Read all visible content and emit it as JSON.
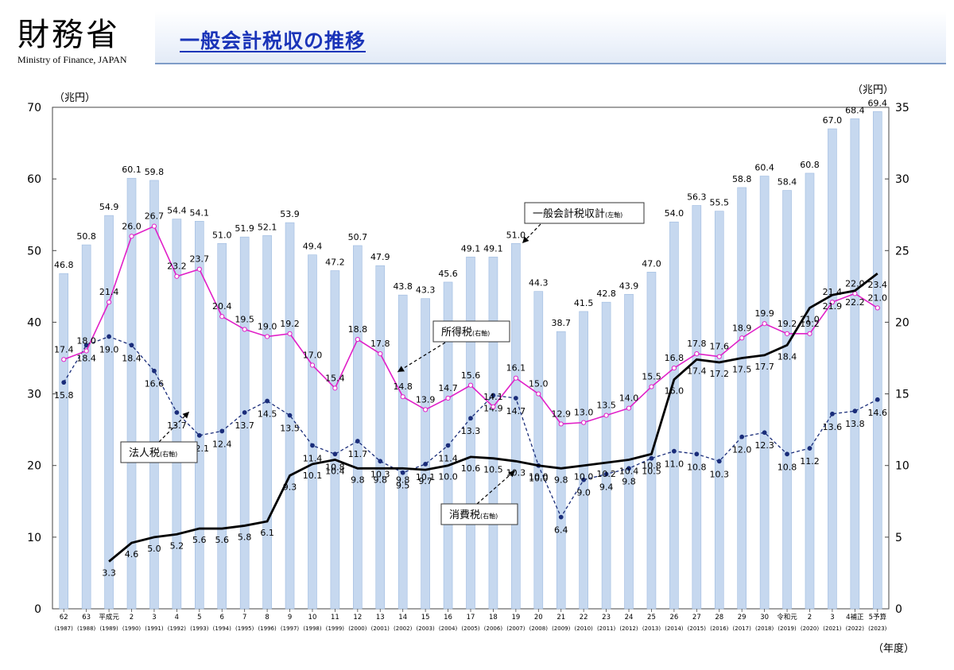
{
  "header": {
    "org_name": "財務省",
    "org_name_en": "Ministry of Finance, JAPAN",
    "title": "一般会計税収の推移"
  },
  "chart_data": {
    "type": "bar",
    "title": "",
    "y_left_unit": "（兆円）",
    "y_right_unit": "（兆円）",
    "x_unit": "（年度）",
    "ylim_left": [
      0,
      70
    ],
    "ylim_right": [
      0,
      35
    ],
    "yticks_left": [
      0,
      10,
      20,
      30,
      40,
      50,
      60,
      70
    ],
    "yticks_right": [
      0,
      5,
      10,
      15,
      20,
      25,
      30,
      35
    ],
    "grid": false,
    "colors": {
      "bar": "#c6d8ef",
      "bar_edge": "#9fbbe0",
      "income": "#e020c8",
      "corporate": "#1a2d7a",
      "consumption": "#000000"
    },
    "categories": [
      "62",
      "63",
      "平成元",
      "2",
      "3",
      "4",
      "5",
      "6",
      "7",
      "8",
      "9",
      "10",
      "11",
      "12",
      "13",
      "14",
      "15",
      "16",
      "17",
      "18",
      "19",
      "20",
      "21",
      "22",
      "23",
      "24",
      "25",
      "26",
      "27",
      "28",
      "29",
      "30",
      "令和元",
      "2",
      "3",
      "4補正",
      "5予算"
    ],
    "years": [
      "(1987)",
      "(1988)",
      "(1989)",
      "(1990)",
      "(1991)",
      "(1992)",
      "(1993)",
      "(1994)",
      "(1995)",
      "(1996)",
      "(1997)",
      "(1998)",
      "(1999)",
      "(2000)",
      "(2001)",
      "(2002)",
      "(2003)",
      "(2004)",
      "(2005)",
      "(2006)",
      "(2007)",
      "(2008)",
      "(2009)",
      "(2010)",
      "(2011)",
      "(2012)",
      "(2013)",
      "(2014)",
      "(2015)",
      "(2016)",
      "(2017)",
      "(2018)",
      "(2019)",
      "(2020)",
      "(2021)",
      "(2022)",
      "(2023)"
    ],
    "series": [
      {
        "name": "一般会計税収計",
        "axis_note": "(左軸)",
        "kind": "bar",
        "values": [
          46.8,
          50.8,
          54.9,
          60.1,
          59.8,
          54.4,
          54.1,
          51.0,
          51.9,
          52.1,
          53.9,
          49.4,
          47.2,
          50.7,
          47.9,
          43.8,
          43.3,
          45.6,
          49.1,
          49.1,
          51.0,
          44.3,
          38.7,
          41.5,
          42.8,
          43.9,
          47.0,
          54.0,
          56.3,
          55.5,
          58.8,
          60.4,
          58.4,
          60.8,
          67.0,
          68.4,
          69.4
        ]
      },
      {
        "name": "所得税",
        "axis_note": "(右軸)",
        "kind": "line",
        "values": [
          17.4,
          18.0,
          21.4,
          26.0,
          26.7,
          23.2,
          23.7,
          20.4,
          19.5,
          19.0,
          19.2,
          17.0,
          15.4,
          18.8,
          17.8,
          14.8,
          13.9,
          14.7,
          15.6,
          14.1,
          16.1,
          15.0,
          12.9,
          13.0,
          13.5,
          14.0,
          15.5,
          16.8,
          17.8,
          17.6,
          18.9,
          19.9,
          19.2,
          19.2,
          21.4,
          22.0,
          21.0
        ]
      },
      {
        "name": "法人税",
        "axis_note": "(右軸)",
        "kind": "line",
        "values": [
          15.8,
          18.4,
          19.0,
          18.4,
          16.6,
          13.7,
          12.1,
          12.4,
          13.7,
          14.5,
          13.5,
          11.4,
          10.8,
          11.7,
          10.3,
          9.5,
          10.1,
          11.4,
          13.3,
          14.9,
          14.7,
          10.0,
          6.4,
          9.0,
          9.4,
          9.8,
          10.5,
          11.0,
          10.8,
          10.3,
          12.0,
          12.3,
          10.8,
          11.2,
          13.6,
          13.8,
          14.6
        ]
      },
      {
        "name": "消費税",
        "axis_note": "(右軸)",
        "kind": "line",
        "values": [
          null,
          null,
          3.3,
          4.6,
          5.0,
          5.2,
          5.6,
          5.6,
          5.8,
          6.1,
          9.3,
          10.1,
          10.4,
          9.8,
          9.8,
          9.8,
          9.7,
          10.0,
          10.6,
          10.5,
          10.3,
          10.0,
          9.8,
          10.0,
          10.2,
          10.4,
          10.8,
          16.0,
          17.4,
          17.2,
          17.5,
          17.7,
          18.4,
          21.0,
          21.9,
          22.2,
          23.4
        ]
      }
    ],
    "callouts": [
      {
        "text": "一般会計税収計",
        "sub": "(左軸)"
      },
      {
        "text": "所得税",
        "sub": "(右軸)"
      },
      {
        "text": "法人税",
        "sub": "(右軸)"
      },
      {
        "text": "消費税",
        "sub": "(右軸)"
      }
    ]
  }
}
